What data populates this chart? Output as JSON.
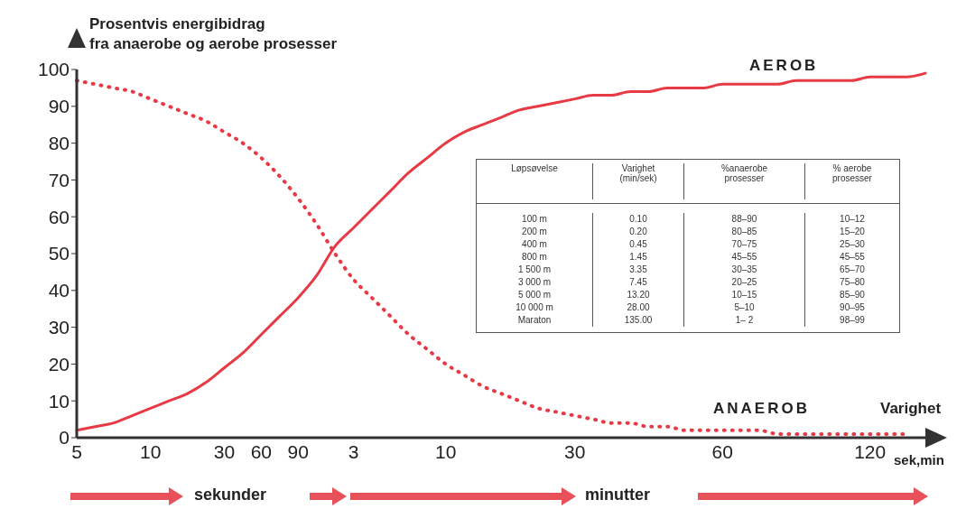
{
  "chart_data": [
    {
      "type": "line",
      "ylabel": "Prosentvis energibidrag\nfra anaerobe og aerobe prosesser",
      "xlabel": "Varighet",
      "categories": [
        "5",
        null,
        null,
        null,
        "10",
        null,
        null,
        null,
        "30",
        null,
        "60",
        null,
        "90",
        null,
        null,
        "3",
        null,
        null,
        null,
        null,
        "10",
        null,
        null,
        null,
        null,
        null,
        null,
        "30",
        null,
        null,
        null,
        null,
        null,
        null,
        null,
        "60",
        null,
        null,
        null,
        null,
        null,
        null,
        null,
        "120",
        null,
        null,
        null
      ],
      "series": [
        {
          "name": "AEROB",
          "color": "#e83a45",
          "line_style": "solid",
          "values": [
            2,
            3,
            4,
            6,
            8,
            10,
            12,
            15,
            19,
            23,
            28,
            33,
            38,
            44,
            52,
            57,
            62,
            67,
            72,
            76,
            80,
            83,
            85,
            87,
            89,
            90,
            91,
            92,
            93,
            93,
            94,
            94,
            95,
            95,
            95,
            96,
            96,
            96,
            96,
            97,
            97,
            97,
            97,
            98,
            98,
            98,
            99
          ]
        },
        {
          "name": "ANAEROB",
          "color": "#e83a45",
          "line_style": "dotted",
          "values": [
            97,
            96,
            95,
            94,
            92,
            90,
            88,
            86,
            83,
            80,
            76,
            71,
            65,
            58,
            50,
            43,
            38,
            33,
            28,
            24,
            20,
            17,
            14,
            12,
            10,
            8,
            7,
            6,
            5,
            4,
            4,
            3,
            3,
            2,
            2,
            2,
            2,
            2,
            1,
            1,
            1,
            1,
            1,
            1,
            1,
            1,
            null
          ]
        }
      ],
      "ylim": [
        0,
        100
      ],
      "yticks": [
        0,
        10,
        20,
        30,
        40,
        50,
        60,
        70,
        80,
        90,
        100
      ],
      "grid": false,
      "legend": false,
      "marker": "none",
      "annotations": [
        "sek,min",
        "sekunder",
        "minutter"
      ]
    },
    {
      "type": "other",
      "categories": [
        "Løpsøvelse",
        "Varighet\n(min/sek)",
        "%anaerobe\nprosesser",
        "% aerobe\nprosesser"
      ],
      "cell_labels": [
        [
          "100 m",
          "0.10",
          "88–90",
          "10–12"
        ],
        [
          "200 m",
          "0.20",
          "80–85",
          "15–20"
        ],
        [
          "400 m",
          "0.45",
          "70–75",
          "25–30"
        ],
        [
          "800 m",
          "1.45",
          "45–55",
          "45–55"
        ],
        [
          "1 500 m",
          "3.35",
          "30–35",
          "65–70"
        ],
        [
          "3 000 m",
          "7.45",
          "20–25",
          "75–80"
        ],
        [
          "5 000 m",
          "13.20",
          "10–15",
          "85–90"
        ],
        [
          "10 000 m",
          "28.00",
          "5–10",
          "90–95"
        ],
        [
          "Maraton",
          "135.00",
          "1– 2",
          "98–99"
        ]
      ]
    }
  ]
}
